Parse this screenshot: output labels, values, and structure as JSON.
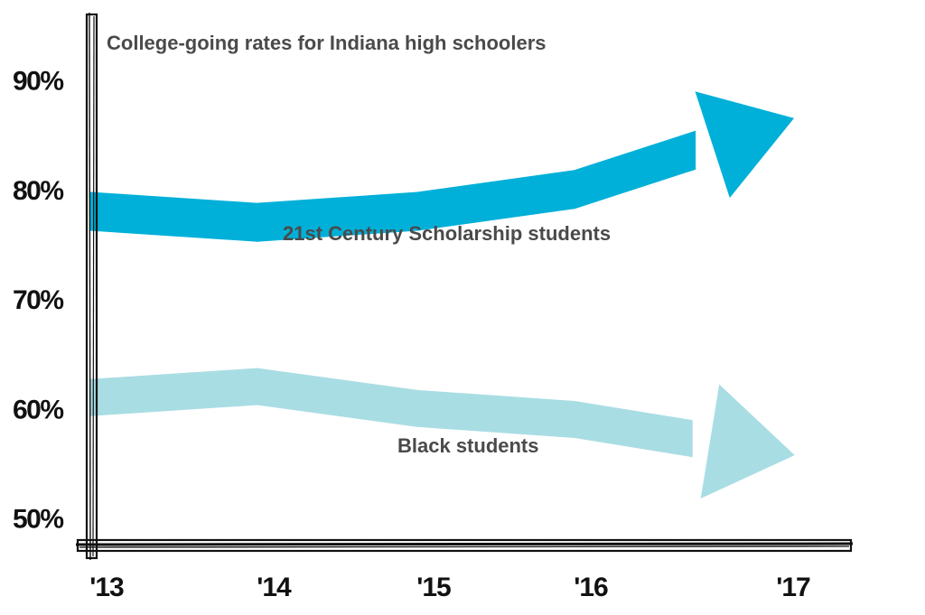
{
  "chart_data": {
    "type": "line",
    "title": "College-going rates for Indiana high schoolers",
    "xlabel": "",
    "ylabel": "",
    "x": [
      "'13",
      "'14",
      "'15",
      "'16",
      "'17"
    ],
    "yticks": [
      "50%",
      "60%",
      "70%",
      "80%",
      "90%"
    ],
    "ylim": [
      47,
      94
    ],
    "grid": false,
    "legend": "none",
    "series": [
      {
        "name": "21st Century Scholarship students",
        "values": [
          78,
          77,
          78,
          80,
          86
        ],
        "color": "#00b0d8"
      },
      {
        "name": "Black students",
        "values": [
          61,
          62,
          60,
          59,
          56
        ],
        "color": "#a9dde4"
      }
    ]
  }
}
